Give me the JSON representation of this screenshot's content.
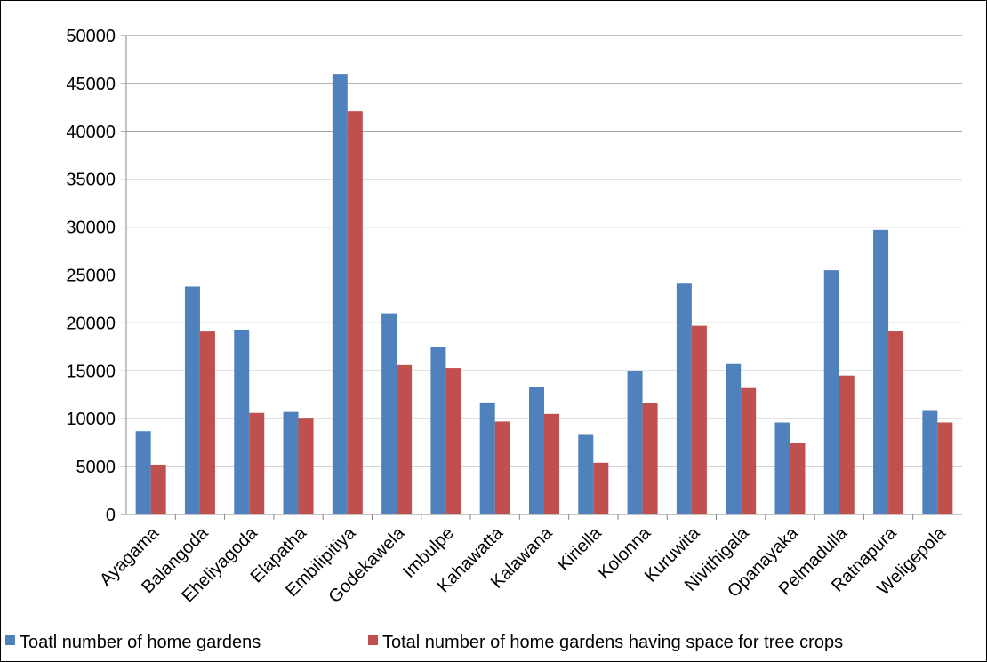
{
  "chart_data": {
    "type": "bar",
    "title": "",
    "xlabel": "",
    "ylabel": "",
    "ylim": [
      0,
      50000
    ],
    "yticks": [
      0,
      5000,
      10000,
      15000,
      20000,
      25000,
      30000,
      35000,
      40000,
      45000,
      50000
    ],
    "grid": true,
    "legend_position": "bottom",
    "categories": [
      "Ayagama",
      "Balangoda",
      "Eheliyagoda",
      "Elapatha",
      "Embilipitiya",
      "Godekawela",
      "Imbulpe",
      "Kahawatta",
      "Kalawana",
      "Kiriella",
      "Kolonna",
      "Kuruwita",
      "Nivithigala",
      "Opanayaka",
      "Pelmadulla",
      "Ratnapura",
      "Weligepola"
    ],
    "series": [
      {
        "name": "Toatl number of home gardens",
        "color": "#4F81BD",
        "values": [
          8700,
          23800,
          19300,
          10700,
          46000,
          21000,
          17500,
          11700,
          13300,
          8400,
          15000,
          24100,
          15700,
          9600,
          25500,
          29700,
          10900
        ]
      },
      {
        "name": "Total number of home gardens having space for tree crops",
        "color": "#C0504D",
        "values": [
          5200,
          19100,
          10600,
          10100,
          42100,
          15600,
          15300,
          9700,
          10500,
          5400,
          11600,
          19700,
          13200,
          7500,
          14500,
          19200,
          9600
        ]
      }
    ]
  }
}
